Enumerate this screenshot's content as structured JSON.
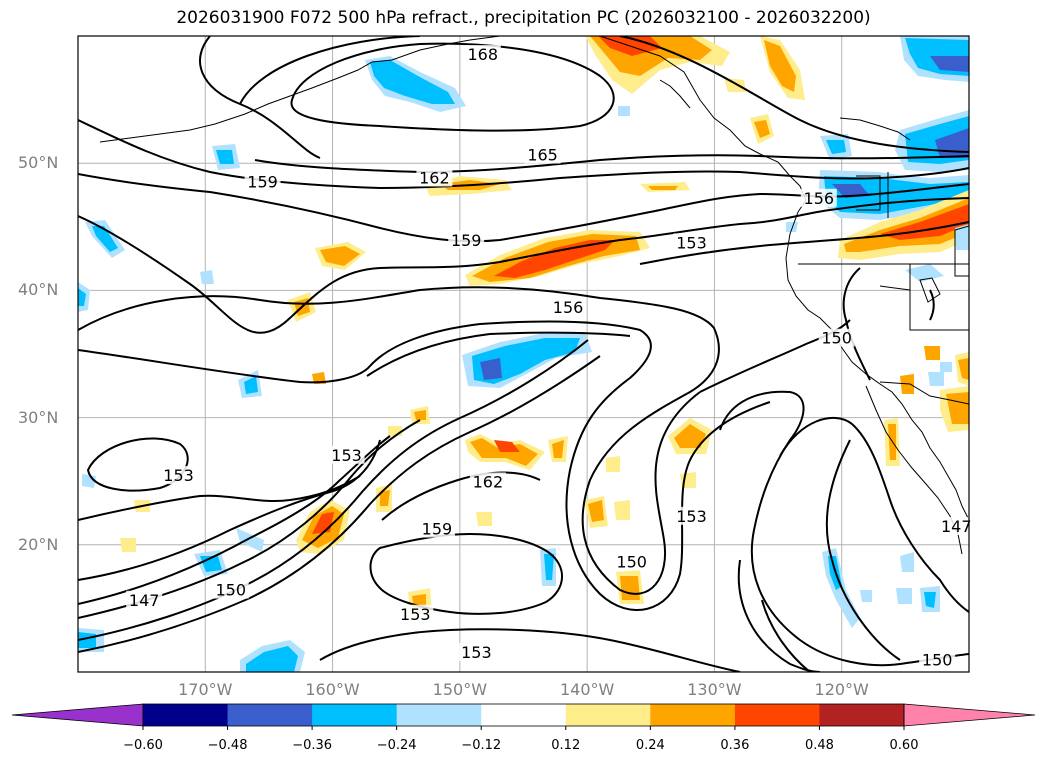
{
  "title": "2026031900 F072 500 hPa refract., precipitation PC (2026032100 - 2026032200)",
  "map": {
    "lon_range": [
      180,
      110
    ],
    "lat_range": [
      10,
      60
    ],
    "lat_ticks": [
      {
        "value": 50,
        "label": "50°N"
      },
      {
        "value": 40,
        "label": "40°N"
      },
      {
        "value": 30,
        "label": "30°N"
      },
      {
        "value": 20,
        "label": "20°N"
      }
    ],
    "lon_ticks": [
      {
        "value": 170,
        "label": "170°W"
      },
      {
        "value": 160,
        "label": "160°W"
      },
      {
        "value": 150,
        "label": "150°W"
      },
      {
        "value": 140,
        "label": "140°W"
      },
      {
        "value": 130,
        "label": "130°W"
      },
      {
        "value": 120,
        "label": "120°W"
      }
    ],
    "contour_labels": [
      {
        "text": "168",
        "lon": 148.2,
        "lat": 58.5
      },
      {
        "text": "165",
        "lon": 143.5,
        "lat": 50.6
      },
      {
        "text": "162",
        "lon": 152.0,
        "lat": 48.8
      },
      {
        "text": "159",
        "lon": 165.5,
        "lat": 48.5
      },
      {
        "text": "159",
        "lon": 149.5,
        "lat": 43.9
      },
      {
        "text": "156",
        "lon": 121.8,
        "lat": 47.2
      },
      {
        "text": "153",
        "lon": 131.8,
        "lat": 43.7
      },
      {
        "text": "156",
        "lon": 141.5,
        "lat": 38.6
      },
      {
        "text": "150",
        "lon": 120.4,
        "lat": 36.2
      },
      {
        "text": "153",
        "lon": 158.9,
        "lat": 27.0
      },
      {
        "text": "153",
        "lon": 172.1,
        "lat": 25.4
      },
      {
        "text": "162",
        "lon": 147.8,
        "lat": 24.9
      },
      {
        "text": "153",
        "lon": 131.8,
        "lat": 22.2
      },
      {
        "text": "159",
        "lon": 151.8,
        "lat": 21.2
      },
      {
        "text": "150",
        "lon": 136.5,
        "lat": 18.6
      },
      {
        "text": "150",
        "lon": 168.0,
        "lat": 16.4
      },
      {
        "text": "147",
        "lon": 174.8,
        "lat": 15.6
      },
      {
        "text": "153",
        "lon": 153.5,
        "lat": 14.5
      },
      {
        "text": "153",
        "lon": 148.7,
        "lat": 11.5
      },
      {
        "text": "147",
        "lon": 111.0,
        "lat": 21.4
      },
      {
        "text": "150",
        "lon": 112.5,
        "lat": 10.9
      }
    ]
  },
  "colorbar": {
    "colors": [
      "#9932cc",
      "#00008b",
      "#3a5fcd",
      "#00bfff",
      "#b0e2ff",
      "#ffffff",
      "#ffec8b",
      "#ffa500",
      "#ff4500",
      "#b22222",
      "#ff82ab"
    ],
    "labels": [
      "−0.60",
      "−0.48",
      "−0.36",
      "−0.24",
      "−0.12",
      "0.12",
      "0.24",
      "0.36",
      "0.48",
      "0.60"
    ]
  }
}
